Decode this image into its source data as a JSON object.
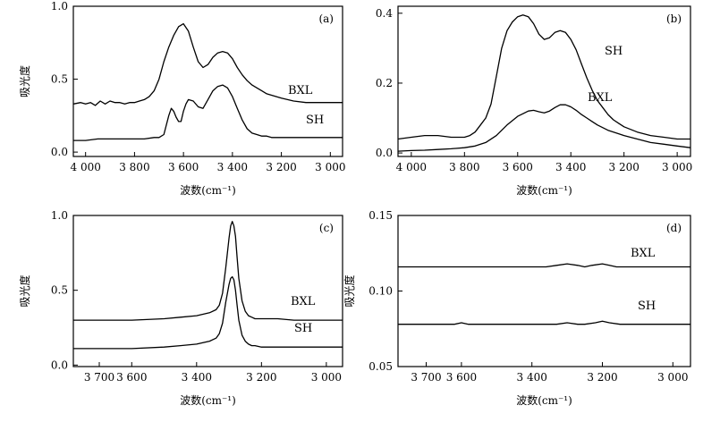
{
  "chart_data": [
    {
      "type": "line",
      "panel_label": "(a)",
      "xlabel": "波数(cm⁻¹)",
      "ylabel": "吸光度",
      "xlim": [
        4050,
        2950
      ],
      "ylim": [
        -0.03,
        1.0
      ],
      "x_ticks": [
        "4 000",
        "3 800",
        "3 600",
        "3 400",
        "3 200",
        "3 000"
      ],
      "y_ticks": [
        "0.0",
        "0.5",
        "1.0"
      ],
      "series": [
        {
          "name": "BXL",
          "x": [
            4050,
            4020,
            4000,
            3980,
            3960,
            3940,
            3920,
            3900,
            3880,
            3860,
            3840,
            3820,
            3800,
            3780,
            3760,
            3740,
            3720,
            3700,
            3680,
            3660,
            3640,
            3620,
            3600,
            3580,
            3560,
            3540,
            3520,
            3500,
            3480,
            3460,
            3440,
            3420,
            3400,
            3380,
            3360,
            3340,
            3320,
            3300,
            3280,
            3260,
            3240,
            3220,
            3200,
            3150,
            3100,
            3050,
            3000,
            2950
          ],
          "y": [
            0.33,
            0.34,
            0.33,
            0.34,
            0.32,
            0.35,
            0.33,
            0.35,
            0.34,
            0.34,
            0.33,
            0.34,
            0.34,
            0.35,
            0.36,
            0.38,
            0.42,
            0.5,
            0.62,
            0.72,
            0.8,
            0.86,
            0.88,
            0.83,
            0.72,
            0.62,
            0.58,
            0.6,
            0.65,
            0.68,
            0.69,
            0.68,
            0.64,
            0.58,
            0.53,
            0.49,
            0.46,
            0.44,
            0.42,
            0.4,
            0.39,
            0.38,
            0.37,
            0.35,
            0.34,
            0.34,
            0.34,
            0.34
          ]
        },
        {
          "name": "SH",
          "x": [
            4050,
            4000,
            3950,
            3900,
            3850,
            3800,
            3760,
            3720,
            3700,
            3680,
            3660,
            3650,
            3640,
            3630,
            3620,
            3610,
            3600,
            3590,
            3580,
            3560,
            3540,
            3520,
            3500,
            3480,
            3460,
            3440,
            3420,
            3400,
            3380,
            3360,
            3340,
            3320,
            3300,
            3280,
            3260,
            3240,
            3200,
            3150,
            3100,
            3050,
            3000,
            2950
          ],
          "y": [
            0.08,
            0.08,
            0.09,
            0.09,
            0.09,
            0.09,
            0.09,
            0.1,
            0.1,
            0.12,
            0.25,
            0.3,
            0.28,
            0.24,
            0.21,
            0.21,
            0.28,
            0.33,
            0.36,
            0.35,
            0.31,
            0.3,
            0.36,
            0.42,
            0.45,
            0.46,
            0.44,
            0.38,
            0.3,
            0.22,
            0.16,
            0.13,
            0.12,
            0.11,
            0.11,
            0.1,
            0.1,
            0.1,
            0.1,
            0.1,
            0.1,
            0.1
          ]
        }
      ]
    },
    {
      "type": "line",
      "panel_label": "(b)",
      "xlabel": "波数(cm⁻¹)",
      "ylabel": "",
      "xlim": [
        4050,
        2950
      ],
      "ylim": [
        -0.01,
        0.42
      ],
      "x_ticks": [
        "4 000",
        "3 800",
        "3 600",
        "3 400",
        "3 200",
        "3 000"
      ],
      "y_ticks": [
        "0.0",
        "0.2",
        "0.4"
      ],
      "series": [
        {
          "name": "SH",
          "x": [
            4050,
            4000,
            3950,
            3900,
            3850,
            3800,
            3780,
            3760,
            3740,
            3720,
            3700,
            3680,
            3660,
            3640,
            3620,
            3600,
            3580,
            3560,
            3540,
            3520,
            3500,
            3480,
            3460,
            3440,
            3420,
            3400,
            3380,
            3360,
            3340,
            3320,
            3300,
            3280,
            3260,
            3240,
            3220,
            3200,
            3150,
            3100,
            3050,
            3000,
            2950
          ],
          "y": [
            0.04,
            0.045,
            0.05,
            0.05,
            0.045,
            0.045,
            0.05,
            0.06,
            0.08,
            0.1,
            0.14,
            0.22,
            0.3,
            0.35,
            0.375,
            0.39,
            0.395,
            0.39,
            0.37,
            0.34,
            0.325,
            0.33,
            0.345,
            0.35,
            0.345,
            0.325,
            0.295,
            0.255,
            0.215,
            0.18,
            0.15,
            0.13,
            0.11,
            0.095,
            0.085,
            0.075,
            0.06,
            0.05,
            0.045,
            0.04,
            0.04
          ]
        },
        {
          "name": "BXL",
          "x": [
            4050,
            4000,
            3950,
            3900,
            3850,
            3800,
            3760,
            3720,
            3680,
            3640,
            3600,
            3560,
            3540,
            3520,
            3500,
            3480,
            3460,
            3440,
            3420,
            3400,
            3380,
            3360,
            3340,
            3320,
            3300,
            3260,
            3220,
            3200,
            3150,
            3100,
            3050,
            3000,
            2950
          ],
          "y": [
            0.005,
            0.007,
            0.008,
            0.01,
            0.012,
            0.015,
            0.02,
            0.03,
            0.05,
            0.08,
            0.105,
            0.12,
            0.122,
            0.118,
            0.115,
            0.12,
            0.13,
            0.138,
            0.138,
            0.132,
            0.122,
            0.11,
            0.1,
            0.09,
            0.08,
            0.065,
            0.055,
            0.05,
            0.04,
            0.03,
            0.025,
            0.02,
            0.015
          ]
        }
      ]
    },
    {
      "type": "line",
      "panel_label": "(c)",
      "xlabel": "波数(cm⁻¹)",
      "ylabel": "吸光度",
      "xlim": [
        3780,
        2950
      ],
      "ylim": [
        -0.01,
        1.0
      ],
      "x_ticks": [
        "3 700",
        "3 600",
        "3 400",
        "3 200",
        "3 000"
      ],
      "x_tick_values": [
        3700,
        3600,
        3400,
        3200,
        3000
      ],
      "y_ticks": [
        "0.0",
        "0.5",
        "1.0"
      ],
      "series": [
        {
          "name": "BXL",
          "x": [
            3780,
            3700,
            3600,
            3500,
            3450,
            3400,
            3360,
            3340,
            3330,
            3320,
            3310,
            3300,
            3295,
            3290,
            3285,
            3280,
            3275,
            3270,
            3260,
            3250,
            3240,
            3230,
            3220,
            3200,
            3150,
            3100,
            3050,
            3000,
            2950
          ],
          "y": [
            0.3,
            0.3,
            0.3,
            0.31,
            0.32,
            0.33,
            0.35,
            0.37,
            0.4,
            0.48,
            0.65,
            0.85,
            0.93,
            0.96,
            0.93,
            0.86,
            0.72,
            0.58,
            0.43,
            0.36,
            0.33,
            0.32,
            0.31,
            0.31,
            0.31,
            0.3,
            0.3,
            0.3,
            0.3
          ]
        },
        {
          "name": "SH",
          "x": [
            3780,
            3700,
            3600,
            3500,
            3450,
            3400,
            3360,
            3340,
            3330,
            3320,
            3310,
            3300,
            3295,
            3290,
            3285,
            3280,
            3275,
            3270,
            3260,
            3250,
            3240,
            3230,
            3220,
            3200,
            3150,
            3100,
            3050,
            3000,
            2950
          ],
          "y": [
            0.11,
            0.11,
            0.11,
            0.12,
            0.13,
            0.14,
            0.16,
            0.18,
            0.21,
            0.28,
            0.42,
            0.54,
            0.58,
            0.59,
            0.57,
            0.5,
            0.4,
            0.3,
            0.2,
            0.16,
            0.14,
            0.13,
            0.13,
            0.12,
            0.12,
            0.12,
            0.12,
            0.12,
            0.12
          ]
        }
      ]
    },
    {
      "type": "line",
      "panel_label": "(d)",
      "xlabel": "波数(cm⁻¹)",
      "ylabel": "吸光度",
      "xlim": [
        3780,
        2950
      ],
      "ylim": [
        0.05,
        0.15
      ],
      "x_ticks": [
        "3 700",
        "3 600",
        "3 400",
        "3 200",
        "3 000"
      ],
      "x_tick_values": [
        3700,
        3600,
        3400,
        3200,
        3000
      ],
      "y_ticks": [
        "0.05",
        "0.10",
        "0.15"
      ],
      "series": [
        {
          "name": "BXL",
          "x": [
            3780,
            3700,
            3600,
            3500,
            3400,
            3360,
            3330,
            3300,
            3270,
            3250,
            3230,
            3200,
            3180,
            3160,
            3100,
            3000,
            2950
          ],
          "y": [
            0.116,
            0.116,
            0.116,
            0.116,
            0.116,
            0.116,
            0.117,
            0.118,
            0.117,
            0.116,
            0.117,
            0.118,
            0.117,
            0.116,
            0.116,
            0.116,
            0.116
          ]
        },
        {
          "name": "SH",
          "x": [
            3780,
            3700,
            3620,
            3600,
            3580,
            3500,
            3400,
            3330,
            3300,
            3270,
            3250,
            3220,
            3200,
            3180,
            3150,
            3100,
            3000,
            2950
          ],
          "y": [
            0.078,
            0.078,
            0.078,
            0.079,
            0.078,
            0.078,
            0.078,
            0.078,
            0.079,
            0.078,
            0.078,
            0.079,
            0.08,
            0.079,
            0.078,
            0.078,
            0.078,
            0.078
          ]
        }
      ]
    }
  ]
}
